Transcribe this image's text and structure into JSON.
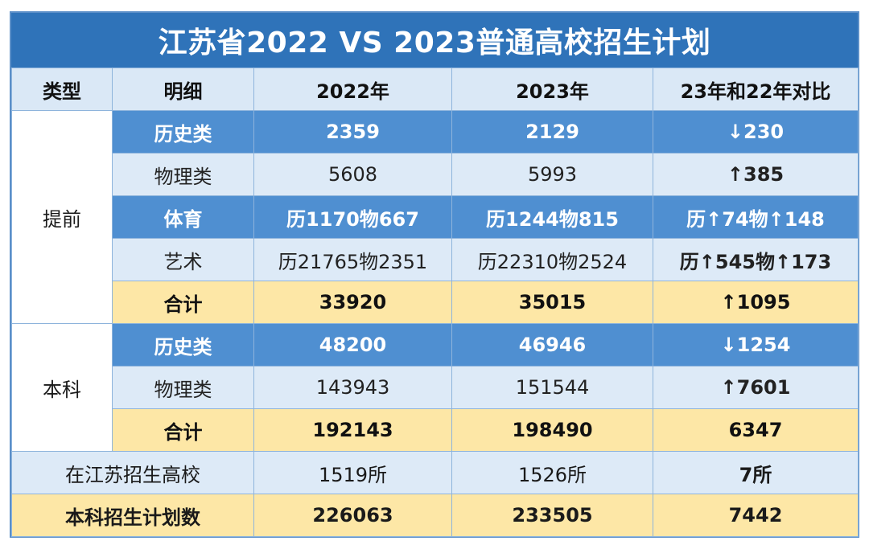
{
  "title": "江苏省2022 VS 2023普通高校招生计划",
  "headers": [
    "类型",
    "明细",
    "2022年",
    "2023年",
    "23年和22年对比"
  ],
  "groups": {
    "early": "提前",
    "undergrad": "本科"
  },
  "rows": {
    "early_history": [
      "历史类",
      "2359",
      "2129",
      "↓230"
    ],
    "early_physics": [
      "物理类",
      "5608",
      "5993",
      "↑385"
    ],
    "early_sports": [
      "体育",
      "历1170物667",
      "历1244物815",
      "历↑74物↑148"
    ],
    "early_art": [
      "艺术",
      "历21765物2351",
      "历22310物2524",
      "历↑545物↑173"
    ],
    "early_total": [
      "合计",
      "33920",
      "35015",
      "↑1095"
    ],
    "ug_history": [
      "历史类",
      "48200",
      "46946",
      "↓1254"
    ],
    "ug_physics": [
      "物理类",
      "143943",
      "151544",
      "↑7601"
    ],
    "ug_total": [
      "合计",
      "192143",
      "198490",
      "6347"
    ],
    "schools": [
      "在江苏招生高校",
      "1519所",
      "1526所",
      "7所"
    ],
    "plan_total": [
      "本科招生计划数",
      "226063",
      "233505",
      "7442"
    ]
  }
}
